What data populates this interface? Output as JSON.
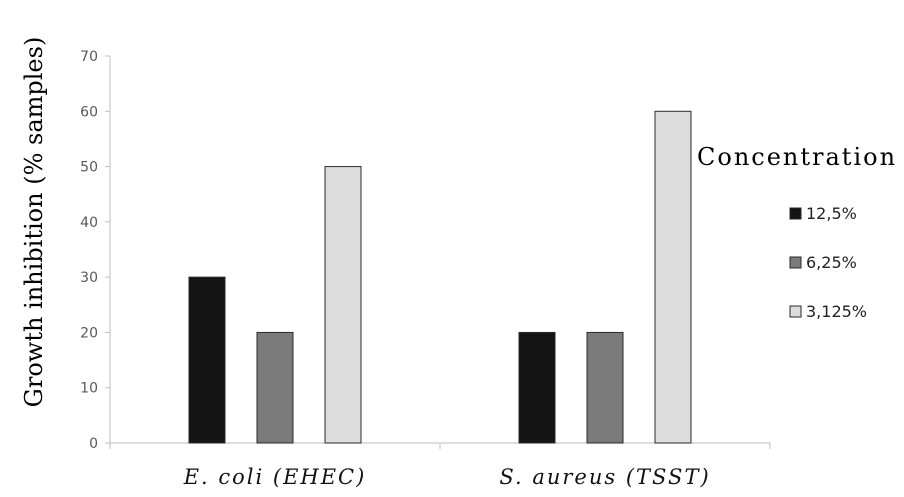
{
  "chart_data": {
    "type": "bar",
    "categories": [
      "E. coli (EHEC)",
      "S. aureus (TSST)"
    ],
    "series": [
      {
        "name": "12,5%",
        "values": [
          30,
          20
        ],
        "color": "#141414"
      },
      {
        "name": "6,25%",
        "values": [
          20,
          20
        ],
        "color": "#7a7a7a"
      },
      {
        "name": "3,125%",
        "values": [
          50,
          60
        ],
        "color": "#dcdcdc"
      }
    ],
    "ylabel": "Growth inhibition (% samples)",
    "xlabel": "",
    "ylim": [
      0,
      70
    ],
    "yticks": [
      0,
      10,
      20,
      30,
      40,
      50,
      60,
      70
    ],
    "legend_title": "Concentration",
    "legend_position": "right",
    "grid": false
  }
}
